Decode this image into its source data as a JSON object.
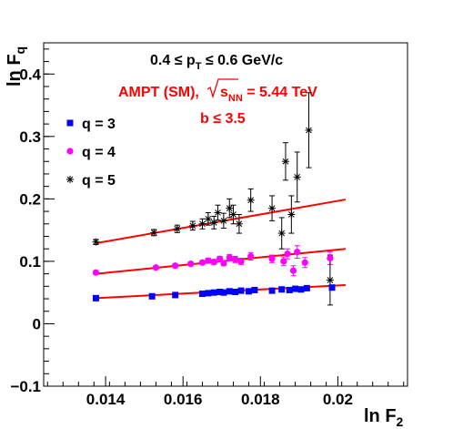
{
  "chart_data": {
    "type": "scatter",
    "title_line1": "0.4 ≤ p",
    "title_line1_sub": "T",
    "title_line1_tail": " ≤ 0.6 GeV/c",
    "annotation_model": "AMPT (SM),",
    "annotation_energy_sub": "NN",
    "annotation_energy_tail": " = 5.44 TeV",
    "annotation_impact": "b  ≤ 3.5",
    "xlabel": "ln F",
    "xlabel_sub": "2",
    "ylabel": "ln F",
    "ylabel_sub": "q",
    "xlim": [
      0.0124,
      0.0218
    ],
    "ylim": [
      -0.1,
      0.45
    ],
    "xticks": [
      0.014,
      0.016,
      0.018,
      0.02
    ],
    "xtick_labels": [
      "0.014",
      "0.016",
      "0.018",
      "0.02"
    ],
    "yticks": [
      -0.1,
      0,
      0.1,
      0.2,
      0.3,
      0.4
    ],
    "ytick_labels": [
      "−0.1",
      "0",
      "0.1",
      "0.2",
      "0.3",
      "0.4"
    ],
    "legend_position": "top-left",
    "colors": {
      "q3": "#0000ff",
      "q4": "#ff00ff",
      "q5": "#000000",
      "fit": "#ff0000",
      "annotation": "#ff0000"
    },
    "series": [
      {
        "name": "q = 3",
        "marker": "square",
        "points": [
          [
            0.01375,
            0.041,
            0.002
          ],
          [
            0.0152,
            0.044,
            0.002
          ],
          [
            0.0158,
            0.046,
            0.002
          ],
          [
            0.0165,
            0.048,
            0.002
          ],
          [
            0.01665,
            0.049,
            0.002
          ],
          [
            0.0168,
            0.05,
            0.002
          ],
          [
            0.01695,
            0.051,
            0.002
          ],
          [
            0.01705,
            0.05,
            0.002
          ],
          [
            0.0172,
            0.052,
            0.002
          ],
          [
            0.01735,
            0.051,
            0.002
          ],
          [
            0.0175,
            0.053,
            0.002
          ],
          [
            0.0177,
            0.052,
            0.002
          ],
          [
            0.01785,
            0.054,
            0.002
          ],
          [
            0.0183,
            0.053,
            0.002
          ],
          [
            0.01855,
            0.055,
            0.002
          ],
          [
            0.01875,
            0.054,
            0.002
          ],
          [
            0.0189,
            0.056,
            0.002
          ],
          [
            0.01905,
            0.055,
            0.003
          ],
          [
            0.0192,
            0.057,
            0.003
          ],
          [
            0.01985,
            0.058,
            0.004
          ]
        ]
      },
      {
        "name": "q = 4",
        "marker": "circle",
        "points": [
          [
            0.01375,
            0.082,
            0.003
          ],
          [
            0.0153,
            0.09,
            0.003
          ],
          [
            0.0158,
            0.093,
            0.003
          ],
          [
            0.0162,
            0.096,
            0.003
          ],
          [
            0.0165,
            0.098,
            0.003
          ],
          [
            0.01665,
            0.101,
            0.004
          ],
          [
            0.0168,
            0.099,
            0.004
          ],
          [
            0.01695,
            0.104,
            0.004
          ],
          [
            0.01705,
            0.097,
            0.004
          ],
          [
            0.0172,
            0.106,
            0.005
          ],
          [
            0.01735,
            0.103,
            0.005
          ],
          [
            0.0175,
            0.1,
            0.005
          ],
          [
            0.01775,
            0.108,
            0.006
          ],
          [
            0.0183,
            0.104,
            0.006
          ],
          [
            0.0186,
            0.1,
            0.007
          ],
          [
            0.0187,
            0.112,
            0.008
          ],
          [
            0.01885,
            0.085,
            0.008
          ],
          [
            0.01895,
            0.115,
            0.01
          ],
          [
            0.01915,
            0.098,
            0.008
          ],
          [
            0.0198,
            0.105,
            0.01
          ]
        ]
      },
      {
        "name": "q = 5",
        "marker": "star",
        "points": [
          [
            0.01375,
            0.131,
            0.004
          ],
          [
            0.01525,
            0.146,
            0.005
          ],
          [
            0.01585,
            0.152,
            0.006
          ],
          [
            0.01625,
            0.157,
            0.007
          ],
          [
            0.0165,
            0.16,
            0.008
          ],
          [
            0.01665,
            0.168,
            0.01
          ],
          [
            0.0168,
            0.162,
            0.01
          ],
          [
            0.0169,
            0.178,
            0.012
          ],
          [
            0.01705,
            0.165,
            0.012
          ],
          [
            0.0172,
            0.185,
            0.015
          ],
          [
            0.0173,
            0.175,
            0.015
          ],
          [
            0.01745,
            0.16,
            0.015
          ],
          [
            0.01775,
            0.198,
            0.018
          ],
          [
            0.0183,
            0.185,
            0.02
          ],
          [
            0.01855,
            0.145,
            0.025
          ],
          [
            0.01865,
            0.26,
            0.03
          ],
          [
            0.0188,
            0.175,
            0.03
          ],
          [
            0.01895,
            0.235,
            0.04
          ],
          [
            0.01925,
            0.31,
            0.06
          ],
          [
            0.0198,
            0.07,
            0.04
          ]
        ]
      }
    ],
    "fits": [
      {
        "series": "q = 3",
        "x": [
          0.01375,
          0.0202
        ],
        "y": [
          0.041,
          0.062
        ]
      },
      {
        "series": "q = 4",
        "x": [
          0.01375,
          0.0202
        ],
        "y": [
          0.08,
          0.12
        ]
      },
      {
        "series": "q = 5",
        "x": [
          0.01375,
          0.0202
        ],
        "y": [
          0.129,
          0.199
        ]
      }
    ]
  }
}
